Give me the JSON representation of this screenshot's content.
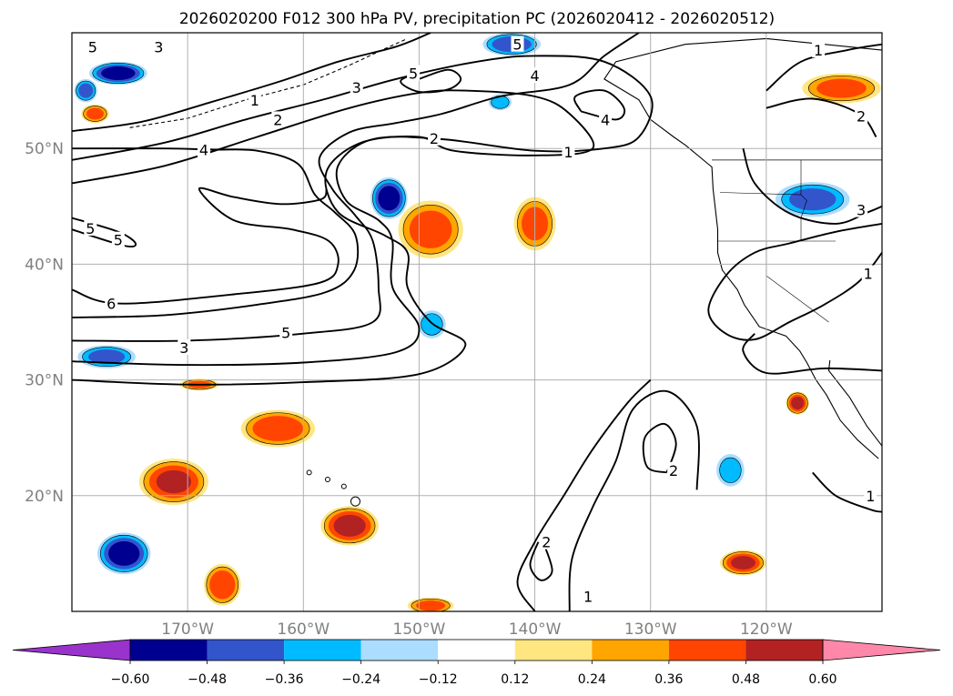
{
  "chart_data": {
    "type": "contour-map",
    "title": "2026020200 F012 300 hPa PV, precipitation PC (2026020412 - 2026020512)",
    "projection": "equirectangular",
    "lon_range": [
      -180,
      -110
    ],
    "lat_range": [
      10,
      60
    ],
    "lon_ticks": [
      {
        "value": -170,
        "label": "170°W"
      },
      {
        "value": -160,
        "label": "160°W"
      },
      {
        "value": -150,
        "label": "150°W"
      },
      {
        "value": -140,
        "label": "140°W"
      },
      {
        "value": -130,
        "label": "130°W"
      },
      {
        "value": -120,
        "label": "120°W"
      }
    ],
    "lat_ticks": [
      {
        "value": 20,
        "label": "20°N"
      },
      {
        "value": 30,
        "label": "30°N"
      },
      {
        "value": 40,
        "label": "40°N"
      },
      {
        "value": 50,
        "label": "50°N"
      }
    ],
    "gridlines": true,
    "pv_contours": {
      "field": "300 hPa PV",
      "levels": [
        1,
        2,
        3,
        4,
        5,
        6
      ],
      "labels": [
        {
          "text": "5",
          "lon": -178.2,
          "lat": 58.8
        },
        {
          "text": "3",
          "lon": -172.5,
          "lat": 58.8
        },
        {
          "text": "1",
          "lon": -164.2,
          "lat": 54.2
        },
        {
          "text": "2",
          "lon": -162.2,
          "lat": 52.5
        },
        {
          "text": "3",
          "lon": -155.4,
          "lat": 55.3
        },
        {
          "text": "5",
          "lon": -150.5,
          "lat": 56.5
        },
        {
          "text": "5",
          "lon": -141.5,
          "lat": 59.0
        },
        {
          "text": "4",
          "lon": -140.0,
          "lat": 56.3
        },
        {
          "text": "4",
          "lon": -133.9,
          "lat": 52.5
        },
        {
          "text": "2",
          "lon": -148.7,
          "lat": 50.9
        },
        {
          "text": "1",
          "lon": -137.1,
          "lat": 49.7
        },
        {
          "text": "1",
          "lon": -115.5,
          "lat": 58.5
        },
        {
          "text": "2",
          "lon": -111.8,
          "lat": 52.8
        },
        {
          "text": "4",
          "lon": -168.6,
          "lat": 49.9
        },
        {
          "text": "5",
          "lon": -178.4,
          "lat": 43.1
        },
        {
          "text": "5",
          "lon": -176.0,
          "lat": 42.1
        },
        {
          "text": "6",
          "lon": -176.6,
          "lat": 36.6
        },
        {
          "text": "5",
          "lon": -161.5,
          "lat": 34.1
        },
        {
          "text": "3",
          "lon": -170.3,
          "lat": 32.8
        },
        {
          "text": "2",
          "lon": -128.0,
          "lat": 22.2
        },
        {
          "text": "2",
          "lon": -139.0,
          "lat": 16.0
        },
        {
          "text": "1",
          "lon": -135.4,
          "lat": 11.3
        },
        {
          "text": "3",
          "lon": -111.8,
          "lat": 44.7
        },
        {
          "text": "1",
          "lon": -111.2,
          "lat": 39.2
        },
        {
          "text": "1",
          "lon": -111.0,
          "lat": 20.0
        }
      ]
    },
    "precipitation_pc": {
      "field": "precipitation PC",
      "colorbar": {
        "orientation": "horizontal",
        "extend": "both",
        "boundaries": [
          -0.6,
          -0.48,
          -0.36,
          -0.24,
          -0.12,
          0.12,
          0.24,
          0.36,
          0.48,
          0.6
        ],
        "tick_labels": [
          "−0.60",
          "−0.48",
          "−0.36",
          "−0.24",
          "−0.12",
          "0.12",
          "0.24",
          "0.36",
          "0.48",
          "0.60"
        ],
        "colors": [
          "#9933cc",
          "#000090",
          "#3355cc",
          "#00bbff",
          "#aaddff",
          "#ffffff",
          "#ffe680",
          "#ffa500",
          "#ff4500",
          "#b22222",
          "#ff88aa"
        ]
      },
      "regions": [
        {
          "sign": "negative",
          "lon": -176.0,
          "lat": 56.5,
          "rx": 2.5,
          "ry": 1.0,
          "peak": -0.55
        },
        {
          "sign": "negative",
          "lon": -178.8,
          "lat": 55.0,
          "rx": 1.0,
          "ry": 1.0,
          "peak": -0.4
        },
        {
          "sign": "negative",
          "lon": -152.6,
          "lat": 45.7,
          "rx": 1.6,
          "ry": 1.8,
          "peak": -0.55
        },
        {
          "sign": "negative",
          "lon": -148.9,
          "lat": 34.8,
          "rx": 1.2,
          "ry": 1.2,
          "peak": -0.3
        },
        {
          "sign": "negative",
          "lon": -177.0,
          "lat": 32.0,
          "rx": 2.5,
          "ry": 1.0,
          "peak": -0.4
        },
        {
          "sign": "negative",
          "lon": -175.5,
          "lat": 15.0,
          "rx": 2.3,
          "ry": 1.8,
          "peak": -0.55
        },
        {
          "sign": "negative",
          "lon": -142.0,
          "lat": 59.0,
          "rx": 2.5,
          "ry": 1.0,
          "peak": -0.45
        },
        {
          "sign": "negative",
          "lon": -116.0,
          "lat": 45.6,
          "rx": 3.2,
          "ry": 1.5,
          "peak": -0.4
        },
        {
          "sign": "negative",
          "lon": -123.1,
          "lat": 22.2,
          "rx": 1.2,
          "ry": 1.4,
          "peak": -0.3
        },
        {
          "sign": "negative",
          "lon": -143.0,
          "lat": 54.0,
          "rx": 1.0,
          "ry": 0.7,
          "peak": -0.3
        },
        {
          "sign": "positive",
          "lon": -149.0,
          "lat": 43.0,
          "rx": 2.8,
          "ry": 2.5,
          "peak": 0.42
        },
        {
          "sign": "positive",
          "lon": -140.0,
          "lat": 43.5,
          "rx": 1.8,
          "ry": 2.3,
          "peak": 0.4
        },
        {
          "sign": "positive",
          "lon": -113.5,
          "lat": 55.2,
          "rx": 3.4,
          "ry": 1.3,
          "peak": 0.4
        },
        {
          "sign": "positive",
          "lon": -171.2,
          "lat": 21.2,
          "rx": 3.0,
          "ry": 2.0,
          "peak": 0.48
        },
        {
          "sign": "positive",
          "lon": -162.2,
          "lat": 25.8,
          "rx": 3.2,
          "ry": 1.6,
          "peak": 0.45
        },
        {
          "sign": "positive",
          "lon": -156.0,
          "lat": 17.4,
          "rx": 2.5,
          "ry": 1.7,
          "peak": 0.52
        },
        {
          "sign": "positive",
          "lon": -167.0,
          "lat": 12.3,
          "rx": 1.6,
          "ry": 1.8,
          "peak": 0.46
        },
        {
          "sign": "positive",
          "lon": -149.0,
          "lat": 10.5,
          "rx": 2.0,
          "ry": 0.7,
          "peak": 0.4
        },
        {
          "sign": "positive",
          "lon": -122.0,
          "lat": 14.2,
          "rx": 2.0,
          "ry": 1.1,
          "peak": 0.5
        },
        {
          "sign": "positive",
          "lon": -117.3,
          "lat": 28.0,
          "rx": 1.0,
          "ry": 1.0,
          "peak": 0.52
        },
        {
          "sign": "positive",
          "lon": -169.0,
          "lat": 29.6,
          "rx": 1.7,
          "ry": 0.5,
          "peak": 0.4
        },
        {
          "sign": "positive",
          "lon": -178.0,
          "lat": 53.0,
          "rx": 1.2,
          "ry": 0.8,
          "peak": 0.4
        },
        {
          "sign": "positive",
          "lon": -124.0,
          "lat": 45.0,
          "rx": 0.0,
          "ry": 0.0,
          "peak": 0.0
        }
      ]
    }
  }
}
